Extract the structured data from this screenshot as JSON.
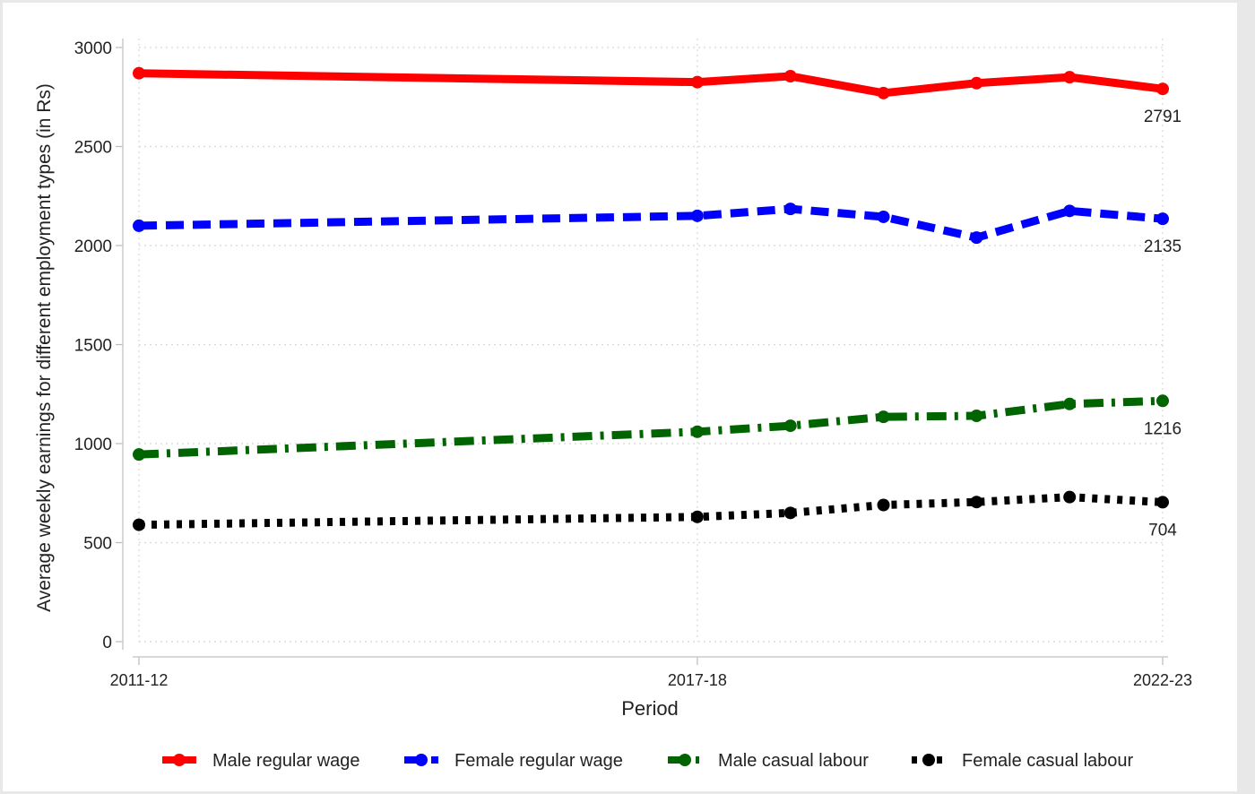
{
  "chart_data": {
    "type": "line",
    "xlabel": "Period",
    "ylabel": "Average weekly earnings for different employment types (in Rs)",
    "x_tick_labels": [
      "2011-12",
      "2017-18",
      "2022-23"
    ],
    "x_tick_positions": [
      0,
      6,
      11
    ],
    "x": [
      0,
      6,
      7,
      8,
      9,
      10,
      11
    ],
    "ylim": [
      0,
      3000
    ],
    "yticks": [
      0,
      500,
      1000,
      1500,
      2000,
      2500,
      3000
    ],
    "grid": true,
    "legend_position": "bottom",
    "series": [
      {
        "name": "Male regular wage",
        "color": "#ff0000",
        "dash": "solid",
        "values": [
          2870,
          2825,
          2855,
          2770,
          2820,
          2850,
          2791
        ],
        "end_label": "2791"
      },
      {
        "name": "Female regular wage",
        "color": "#0000ff",
        "dash": "dash",
        "values": [
          2100,
          2150,
          2185,
          2145,
          2040,
          2175,
          2135
        ],
        "end_label": "2135"
      },
      {
        "name": "Male casual labour",
        "color": "#006400",
        "dash": "dashdot",
        "values": [
          945,
          1060,
          1090,
          1135,
          1140,
          1200,
          1216
        ],
        "end_label": "1216"
      },
      {
        "name": "Female casual labour",
        "color": "#000000",
        "dash": "dot",
        "values": [
          590,
          630,
          650,
          690,
          705,
          730,
          704
        ],
        "end_label": "704"
      }
    ]
  }
}
